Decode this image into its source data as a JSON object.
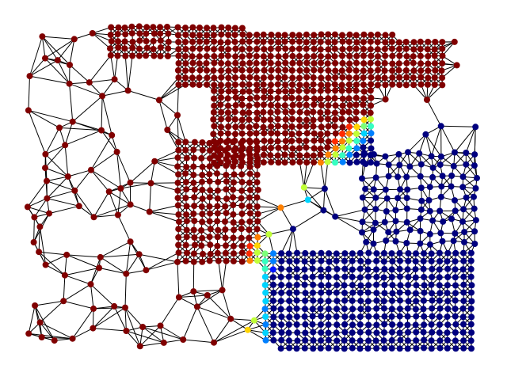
{
  "graph": {
    "colors": {
      "partition_a": "#800000",
      "partition_b": "#00007f",
      "boundary": [
        "#ff2a00",
        "#ff8000",
        "#ffd400",
        "#c0ff36",
        "#7dff7a",
        "#36ffc1",
        "#00d4ff",
        "#0080ff",
        "#0014ff"
      ],
      "edge": "#000000",
      "background": "#ffffff"
    }
  }
}
